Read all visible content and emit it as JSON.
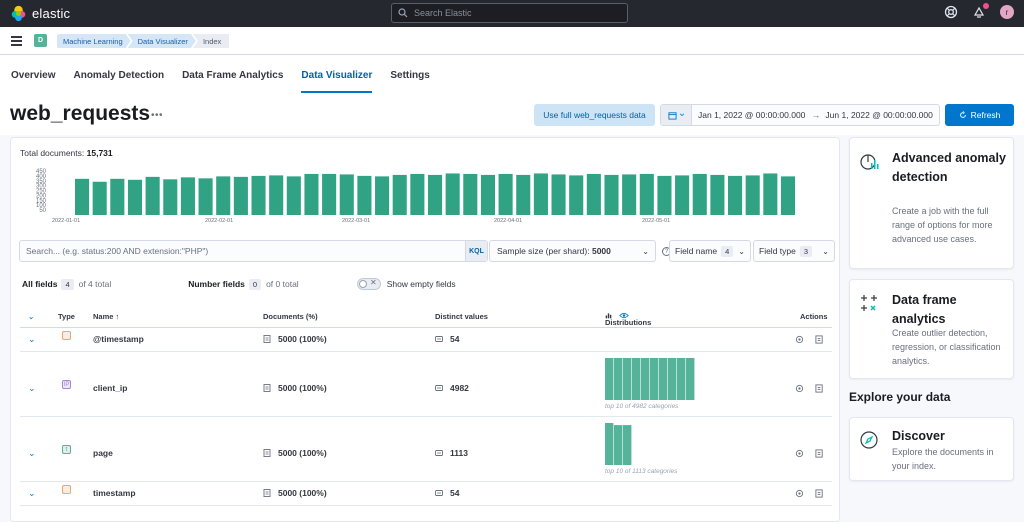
{
  "topbar": {
    "logo_text": "elastic",
    "search_placeholder": "Search Elastic",
    "avatar_initial": "r"
  },
  "breadcrumbs": {
    "space_initial": "D",
    "items": [
      "Machine Learning",
      "Data Visualizer",
      "Index"
    ]
  },
  "tabs": [
    {
      "label": "Overview",
      "active": false
    },
    {
      "label": "Anomaly Detection",
      "active": false
    },
    {
      "label": "Data Frame Analytics",
      "active": false
    },
    {
      "label": "Data Visualizer",
      "active": true
    },
    {
      "label": "Settings",
      "active": false
    }
  ],
  "header": {
    "title": "web_requests",
    "more_dots": "•••",
    "use_full_label": "Use full web_requests data",
    "date_start": "Jan 1, 2022 @ 00:00:00.000",
    "date_arrow": "→",
    "date_end": "Jun 1, 2022 @ 00:00:00.000",
    "refresh_label": "Refresh"
  },
  "summary": {
    "total_label": "Total documents:",
    "total_value": "15,731"
  },
  "chart_data": {
    "type": "bar",
    "title": "",
    "xlabel": "",
    "ylabel": "",
    "ylim": [
      0,
      450
    ],
    "y_ticks": [
      "450",
      "400",
      "350",
      "300",
      "250",
      "200",
      "150",
      "100",
      "50"
    ],
    "x_ticks": [
      "2022-01-01",
      "2022-02-01",
      "2022-03-01",
      "2022-04-01",
      "2022-05-01"
    ],
    "values": [
      370,
      340,
      370,
      360,
      390,
      365,
      385,
      375,
      395,
      390,
      400,
      405,
      395,
      420,
      420,
      415,
      400,
      395,
      410,
      420,
      410,
      425,
      420,
      410,
      420,
      410,
      425,
      415,
      405,
      420,
      410,
      415,
      420,
      400,
      405,
      420,
      410,
      400,
      405,
      425,
      395
    ],
    "bar_color": "#30a384"
  },
  "controls": {
    "search_placeholder": "Search... (e.g. status:200 AND extension:\"PHP\")",
    "kql_label": "KQL",
    "sample_label": "Sample size (per shard):",
    "sample_value": "5000",
    "help_glyph": "?",
    "field_name_label": "Field name",
    "field_name_count": "4",
    "field_type_label": "Field type",
    "field_type_count": "3"
  },
  "stats": {
    "all_fields_label": "All fields",
    "all_fields_count": "4",
    "all_fields_total": "of 4 total",
    "number_fields_label": "Number fields",
    "number_fields_count": "0",
    "number_fields_total": "of 0 total",
    "show_empty_label": "Show empty fields"
  },
  "table": {
    "headers": {
      "type": "Type",
      "name": "Name ↑",
      "documents": "Documents (%)",
      "distinct": "Distinct values",
      "distributions": "Distributions",
      "actions": "Actions"
    },
    "rows": [
      {
        "type_glyph": "",
        "type_color": "#f1a36d",
        "name": "@timestamp",
        "documents": "5000 (100%)",
        "distinct": "54",
        "dist_caption": "",
        "dist_bars": []
      },
      {
        "type_glyph": "IP",
        "type_color": "#a987d1",
        "name": "client_ip",
        "documents": "5000 (100%)",
        "distinct": "4982",
        "dist_caption": "top 10 of 4982 categories",
        "dist_bars": [
          1,
          1,
          1,
          1,
          1,
          1,
          1,
          1,
          1,
          1
        ]
      },
      {
        "type_glyph": "t",
        "type_color": "#54b399",
        "name": "page",
        "documents": "5000 (100%)",
        "distinct": "1113",
        "dist_caption": "top 10 of 1113 categories",
        "dist_bars": [
          1,
          0.95,
          0.95
        ]
      },
      {
        "type_glyph": "",
        "type_color": "#f1a36d",
        "name": "timestamp",
        "documents": "5000 (100%)",
        "distinct": "54",
        "dist_caption": "",
        "dist_bars": []
      }
    ]
  },
  "cards": [
    {
      "title": "Advanced anomaly detection",
      "desc": "Create a job with the full range of options for more advanced use cases."
    },
    {
      "title": "Data frame analytics",
      "desc": "Create outlier detection, regression, or classification analytics."
    },
    {
      "title": "Discover",
      "desc": "Explore the documents in your index."
    }
  ],
  "explore_title": "Explore your data"
}
